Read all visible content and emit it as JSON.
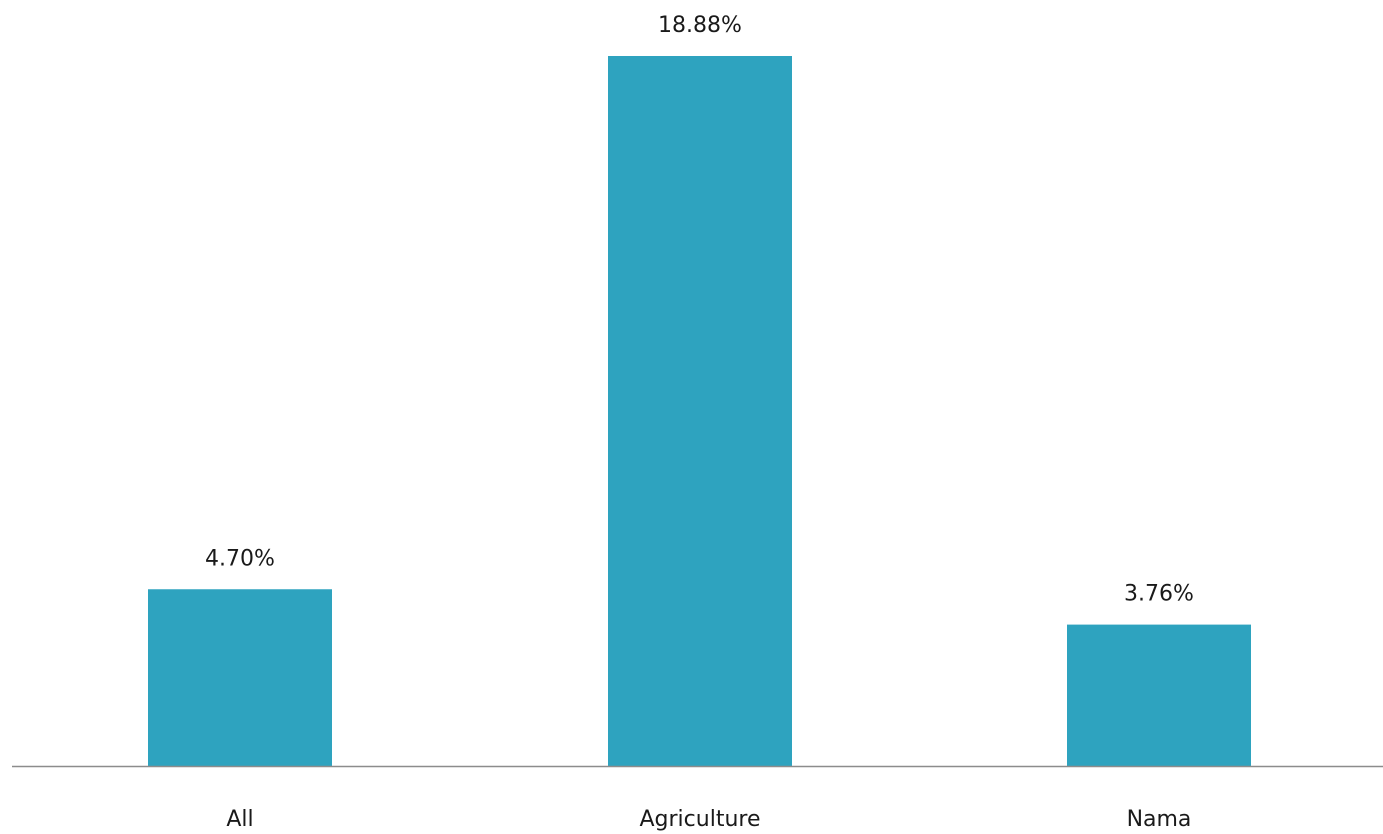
{
  "chart_data": {
    "type": "bar",
    "categories": [
      "All",
      "Agriculture",
      "Nama"
    ],
    "values": [
      4.7,
      18.88,
      3.76
    ],
    "value_labels": [
      "4.70%",
      "18.88%",
      "3.76%"
    ],
    "title": "",
    "xlabel": "",
    "ylabel": "",
    "ylim": [
      0,
      18.88
    ],
    "grid": false,
    "legend": "none",
    "colors": {
      "bar": "#2EA3BF",
      "axis": "#8c8c8c",
      "text": "#1a1a1a"
    }
  }
}
